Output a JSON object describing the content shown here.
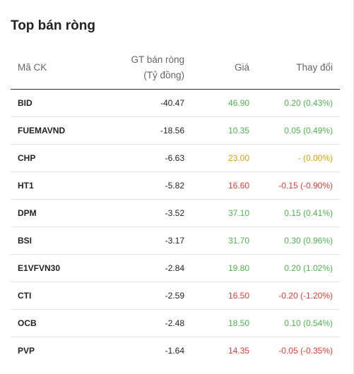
{
  "title": "Top bán ròng",
  "columns": {
    "symbol": "Mã CK",
    "value_line1": "GT bán ròng",
    "value_line2": "(Tỷ đồng)",
    "price": "Giá",
    "change": "Thay đổi"
  },
  "colors": {
    "up": "#4cb54c",
    "down": "#e53935",
    "reference": "#d4a300"
  },
  "rows": [
    {
      "symbol": "BID",
      "value": "-40.47",
      "price": "46.90",
      "change": "0.20 (0.43%)",
      "trend": "up"
    },
    {
      "symbol": "FUEMAVND",
      "value": "-18.56",
      "price": "10.35",
      "change": "0.05 (0.49%)",
      "trend": "up"
    },
    {
      "symbol": "CHP",
      "value": "-6.63",
      "price": "23.00",
      "change": "- (0.00%)",
      "trend": "ref"
    },
    {
      "symbol": "HT1",
      "value": "-5.82",
      "price": "16.60",
      "change": "-0.15 (-0.90%)",
      "trend": "down"
    },
    {
      "symbol": "DPM",
      "value": "-3.52",
      "price": "37.10",
      "change": "0.15 (0.41%)",
      "trend": "up"
    },
    {
      "symbol": "BSI",
      "value": "-3.17",
      "price": "31.70",
      "change": "0.30 (0.96%)",
      "trend": "up"
    },
    {
      "symbol": "E1VFVN30",
      "value": "-2.84",
      "price": "19.80",
      "change": "0.20 (1.02%)",
      "trend": "up"
    },
    {
      "symbol": "CTI",
      "value": "-2.59",
      "price": "16.50",
      "change": "-0.20 (-1.20%)",
      "trend": "down"
    },
    {
      "symbol": "OCB",
      "value": "-2.48",
      "price": "18.50",
      "change": "0.10 (0.54%)",
      "trend": "up"
    },
    {
      "symbol": "PVP",
      "value": "-1.64",
      "price": "14.35",
      "change": "-0.05 (-0.35%)",
      "trend": "down"
    }
  ]
}
